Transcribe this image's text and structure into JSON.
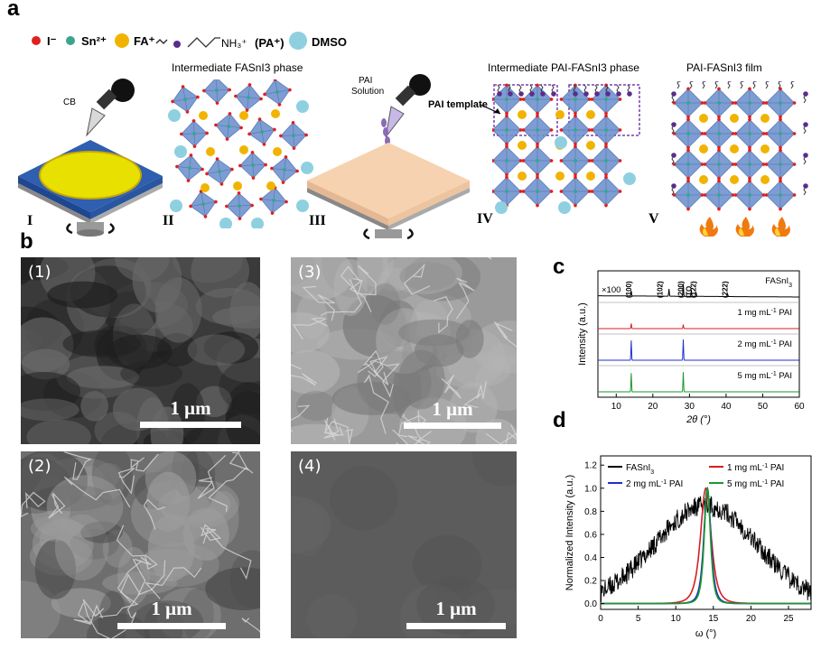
{
  "panel_a": {
    "letter": "a",
    "legend": {
      "iodide": "I⁻",
      "tin": "Sn²⁺",
      "fa": "FA⁺",
      "pa_formula": "NH₃⁺",
      "pa_name": "(PA⁺)",
      "dmso": "DMSO"
    },
    "stages": {
      "cb_label": "CB",
      "intermediate_fasni3": "Intermediate FASnI3 phase",
      "pai_solution_1": "PAI",
      "pai_solution_2": "Solution",
      "intermediate_pai": "Intermediate PAI-FASnI3 phase",
      "pai_template": "PAI template",
      "film": "PAI-FASnI3 film"
    },
    "roman": [
      "I",
      "II",
      "III",
      "IV",
      "V"
    ]
  },
  "panel_b": {
    "letter": "b",
    "images": [
      {
        "label": "(1)",
        "scale": "1 μm"
      },
      {
        "label": "(3)",
        "scale": "1 μm"
      },
      {
        "label": "(2)",
        "scale": "1 μm"
      },
      {
        "label": "(4)",
        "scale": "1 μm"
      }
    ]
  },
  "panel_c": {
    "letter": "c"
  },
  "panel_d": {
    "letter": "d"
  },
  "colors": {
    "black": "#000000",
    "red": "#d62020",
    "blue": "#1f2fcf",
    "green": "#1a9a2a",
    "octahedron": "#6f93cf",
    "fa_yellow": "#f0b400",
    "dmso_cyan": "#8fd0e0",
    "iodide_red": "#e02020",
    "tin_green": "#3aa58c",
    "pa_purple": "#5a2d8c"
  },
  "chart_data": [
    {
      "type": "line",
      "panel": "c",
      "xlabel": "2θ (°)",
      "ylabel": "Intensity (a.u.)",
      "xlim": [
        5,
        60
      ],
      "xticks": [
        10,
        20,
        30,
        40,
        50,
        60
      ],
      "series": [
        {
          "name": "FASnI3",
          "label": "FASnI",
          "label_sub": "3",
          "color": "#000000",
          "multiplier": "×100",
          "peaks": [
            [
              14.1,
              0.25
            ],
            [
              24.4,
              0.35
            ],
            [
              28.3,
              0.6
            ],
            [
              30.5,
              0.3
            ],
            [
              31.8,
              0.2
            ],
            [
              40.4,
              0.15
            ]
          ]
        },
        {
          "name": "1 mg mL-1 PAI",
          "label_pre": "1 mg mL",
          "label_sup": "-1",
          "label_post": " PAI",
          "color": "#d62020",
          "peaks": [
            [
              14.1,
              0.25
            ],
            [
              28.3,
              0.2
            ]
          ]
        },
        {
          "name": "2 mg mL-1 PAI",
          "label_pre": "2 mg mL",
          "label_sup": "-1",
          "label_post": " PAI",
          "color": "#1f2fcf",
          "peaks": [
            [
              14.1,
              0.95
            ],
            [
              28.3,
              1.0
            ]
          ]
        },
        {
          "name": "5 mg mL-1 PAI",
          "label_pre": "5 mg mL",
          "label_sup": "-1",
          "label_post": " PAI",
          "color": "#1a9a2a",
          "peaks": [
            [
              14.1,
              0.9
            ],
            [
              28.3,
              0.95
            ]
          ]
        }
      ],
      "annotations": [
        {
          "text": "(100)",
          "x": 14.1
        },
        {
          "text": "(102)",
          "x": 22.6
        },
        {
          "text": "(200)",
          "x": 28.3
        },
        {
          "text": "ITO",
          "x": 30.5
        },
        {
          "text": "(122)",
          "x": 31.8
        },
        {
          "text": "(222)",
          "x": 40.4
        }
      ]
    },
    {
      "type": "line",
      "panel": "d",
      "xlabel": "ω (°)",
      "ylabel": "Normalized Intensity (a.u.)",
      "xlim": [
        0,
        28
      ],
      "ylim": [
        -0.05,
        1.28
      ],
      "xticks": [
        0,
        5,
        10,
        15,
        20,
        25
      ],
      "yticks": [
        0.0,
        0.2,
        0.4,
        0.6,
        0.8,
        1.0,
        1.2
      ],
      "series": [
        {
          "name": "FASnI3",
          "label": "FASnI",
          "label_sub": "3",
          "color": "#000000",
          "center": 14.0,
          "fwhm": 16,
          "noise": 0.09
        },
        {
          "name": "1 mg mL-1 PAI",
          "label_pre": "1 mg mL",
          "label_sup": "-1",
          "label_post": " PAI",
          "color": "#d62020",
          "center": 14.0,
          "fwhm": 2.6
        },
        {
          "name": "2 mg mL-1 PAI",
          "label_pre": "2 mg mL",
          "label_sup": "-1",
          "label_post": " PAI",
          "color": "#1f2fcf",
          "center": 14.2,
          "fwhm": 1.7
        },
        {
          "name": "5 mg mL-1 PAI",
          "label_pre": "5 mg mL",
          "label_sup": "-1",
          "label_post": " PAI",
          "color": "#1a9a2a",
          "center": 14.2,
          "fwhm": 1.5
        }
      ],
      "legend_placement": "top"
    }
  ]
}
